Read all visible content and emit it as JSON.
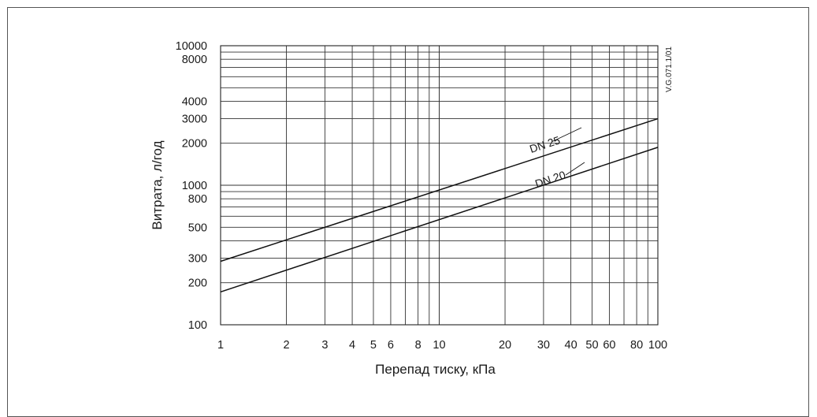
{
  "chart_data": {
    "type": "line",
    "title": "",
    "xlabel": "Перепад тиску, кПа",
    "ylabel": "Витрата, л/год",
    "x_scale": "log",
    "y_scale": "log",
    "xlim": [
      1,
      100
    ],
    "ylim": [
      100,
      10000
    ],
    "grid": true,
    "x_tick_labels": [
      "1",
      "2",
      "3",
      "4",
      "5",
      "6",
      "8",
      "10",
      "20",
      "30",
      "40",
      "50",
      "60",
      "80",
      "100"
    ],
    "y_tick_labels": [
      "100",
      "200",
      "300",
      "500",
      "800",
      "1000",
      "2000",
      "3000",
      "4000",
      "8000",
      "10000"
    ],
    "series": [
      {
        "name": "DN 25",
        "x": [
          1,
          100
        ],
        "y": [
          285,
          3000
        ]
      },
      {
        "name": "DN 20",
        "x": [
          1,
          100
        ],
        "y": [
          172,
          1870
        ]
      }
    ],
    "annotations": [
      "V.G.071.1/01"
    ]
  }
}
